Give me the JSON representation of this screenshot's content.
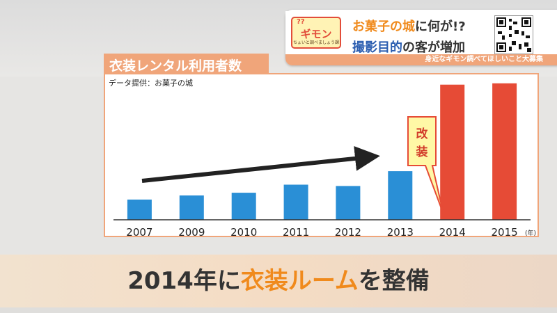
{
  "banner": {
    "title_a": "お菓子の城",
    "title_b": "に何が!?",
    "sub_a": "撮影目的",
    "sub_b": "の客が増加",
    "strip": "身近なギモン調べてほしいこと大募集",
    "logo_q": "??",
    "logo_main": "ギモン",
    "logo_sub": "ちょいと調べましょう課",
    "qr_icon": "qr-code-icon"
  },
  "chart": {
    "title": "衣装レンタル利用者数",
    "source": "データ提供：お菓子の城",
    "callout": [
      "改",
      "装"
    ],
    "x_unit": "(年)"
  },
  "chart_data": {
    "type": "bar",
    "title": "衣装レンタル利用者数",
    "categories": [
      "2007",
      "2009",
      "2010",
      "2011",
      "2012",
      "2013",
      "2014",
      "2015"
    ],
    "values": [
      15,
      18,
      20,
      26,
      25,
      36,
      100,
      101
    ],
    "value_unit": "relative (unlabeled y-axis)",
    "colors": [
      "#2a8fd6",
      "#2a8fd6",
      "#2a8fd6",
      "#2a8fd6",
      "#2a8fd6",
      "#2a8fd6",
      "#e64b36",
      "#e64b36"
    ],
    "ylim": [
      0,
      105
    ],
    "grid": false,
    "annotation_trend": "upward arrow across 2007–2013",
    "annotation_callout": "改装 at 2014"
  },
  "caption": {
    "part1": "2014年に",
    "part2": "衣装ルーム",
    "part3": "を整備"
  }
}
